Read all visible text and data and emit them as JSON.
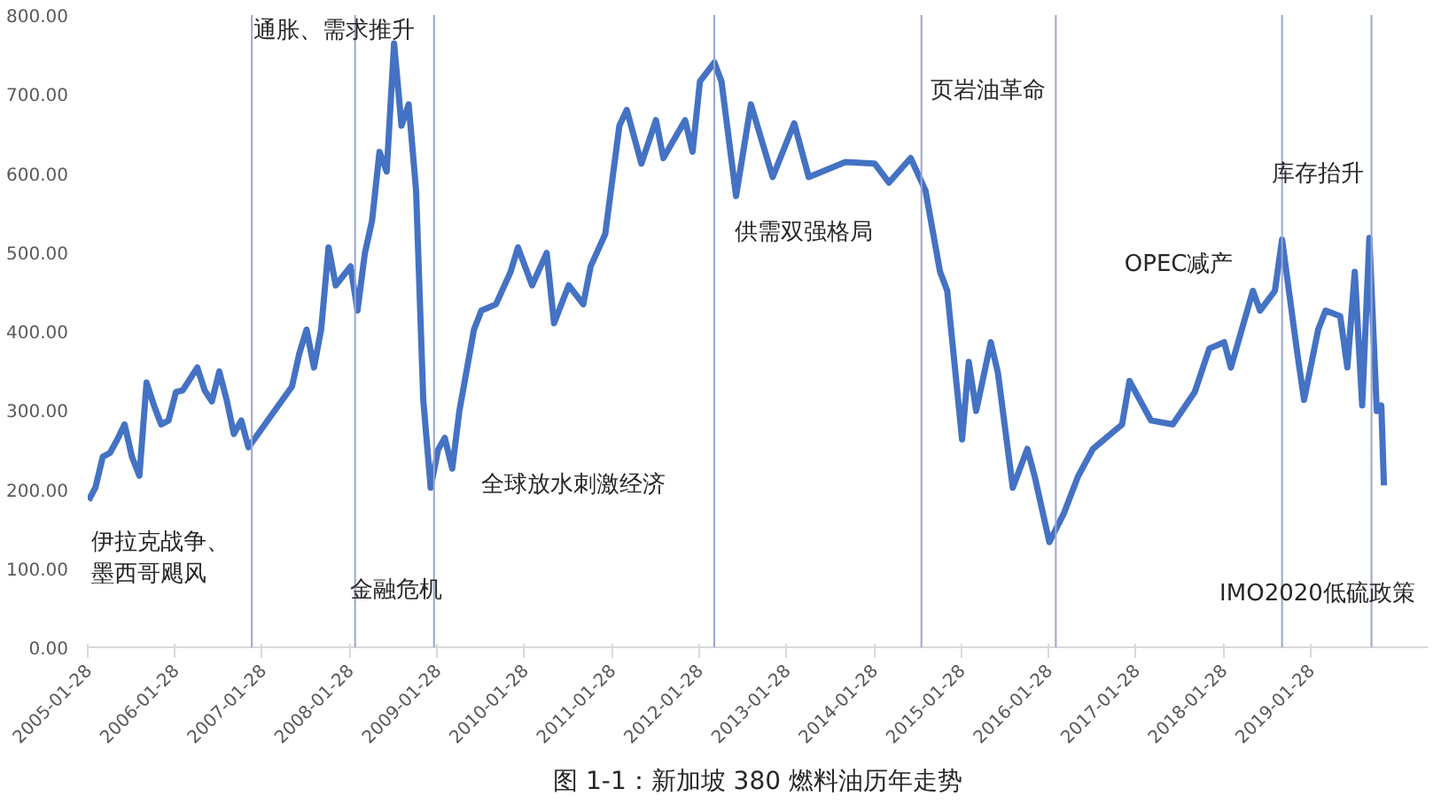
{
  "chart_data": {
    "type": "line",
    "title": "图 1-1：新加坡 380 燃料油历年走势",
    "x": [
      "2005-02",
      "2005-03",
      "2005-04",
      "2005-05",
      "2005-06",
      "2005-07",
      "2005-08",
      "2005-09",
      "2005-10",
      "2005-11",
      "2005-12",
      "2006-01",
      "2006-02",
      "2006-03",
      "2006-05",
      "2006-06",
      "2006-07",
      "2006-08",
      "2006-09",
      "2006-10",
      "2006-11",
      "2006-12",
      "2007-06",
      "2007-07",
      "2007-08",
      "2007-09",
      "2007-10",
      "2007-11",
      "2007-12",
      "2008-02",
      "2008-03",
      "2008-04",
      "2008-05",
      "2008-06",
      "2008-07",
      "2008-08",
      "2008-09",
      "2008-10",
      "2008-11",
      "2008-12",
      "2009-01",
      "2009-02",
      "2009-03",
      "2009-04",
      "2009-05",
      "2009-07",
      "2009-08",
      "2009-10",
      "2009-12",
      "2010-01",
      "2010-03",
      "2010-05",
      "2010-06",
      "2010-08",
      "2010-10",
      "2010-11",
      "2011-01",
      "2011-03",
      "2011-04",
      "2011-06",
      "2011-08",
      "2011-09",
      "2011-12",
      "2012-01",
      "2012-02",
      "2012-04",
      "2012-05",
      "2012-07",
      "2012-09",
      "2012-12",
      "2013-03",
      "2013-05",
      "2013-10",
      "2014-02",
      "2014-04",
      "2014-07",
      "2014-09",
      "2014-11",
      "2014-12",
      "2015-02",
      "2015-03",
      "2015-04",
      "2015-06",
      "2015-07",
      "2015-09",
      "2015-11",
      "2015-12",
      "2016-02",
      "2016-04",
      "2016-06",
      "2016-08",
      "2016-12",
      "2017-01",
      "2017-04",
      "2017-07",
      "2017-10",
      "2017-12",
      "2018-02",
      "2018-03",
      "2018-06",
      "2018-07",
      "2018-09",
      "2018-10",
      "2018-12",
      "2019-01",
      "2019-03",
      "2019-04",
      "2019-06",
      "2019-07",
      "2019-08",
      "2019-09",
      "2019-10",
      "2019-11",
      "2019-11-20",
      "2019-12"
    ],
    "series": [
      {
        "color": "#4472c4",
        "values": [
          186,
          202,
          241,
          246,
          263,
          282,
          241,
          217,
          335,
          306,
          282,
          287,
          323,
          325,
          354,
          325,
          311,
          349,
          313,
          270,
          287,
          253,
          330,
          371,
          402,
          354,
          402,
          506,
          458,
          482,
          426,
          499,
          540,
          627,
          602,
          764,
          660,
          687,
          578,
          313,
          202,
          250,
          265,
          226,
          299,
          402,
          426,
          434,
          475,
          506,
          458,
          499,
          410,
          458,
          434,
          482,
          523,
          660,
          680,
          612,
          667,
          619,
          667,
          627,
          716,
          740,
          716,
          571,
          687,
          595,
          663,
          595,
          614,
          612,
          588,
          619,
          578,
          475,
          451,
          263,
          361,
          299,
          386,
          347,
          202,
          251,
          217,
          133,
          169,
          217,
          251,
          282,
          337,
          287,
          282,
          323,
          378,
          386,
          354,
          451,
          426,
          451,
          516,
          378,
          313,
          402,
          426,
          419,
          354,
          475,
          306,
          518,
          299,
          306,
          205
        ]
      }
    ],
    "xlim": [
      "2005-01-28",
      "2020-06-01"
    ],
    "xticks": [
      {
        "value": "2005-01-28",
        "label": "2005-01-28"
      },
      {
        "value": "2006-01-28",
        "label": "2006-01-28"
      },
      {
        "value": "2007-01-28",
        "label": "2007-01-28"
      },
      {
        "value": "2008-01-28",
        "label": "2008-01-28"
      },
      {
        "value": "2009-01-28",
        "label": "2009-01-28"
      },
      {
        "value": "2010-01-28",
        "label": "2010-01-28"
      },
      {
        "value": "2011-01-28",
        "label": "2011-01-28"
      },
      {
        "value": "2012-01-28",
        "label": "2012-01-28"
      },
      {
        "value": "2013-01-28",
        "label": "2013-01-28"
      },
      {
        "value": "2014-01-28",
        "label": "2014-01-28"
      },
      {
        "value": "2015-01-28",
        "label": "2015-01-28"
      },
      {
        "value": "2016-01-28",
        "label": "2016-01-28"
      },
      {
        "value": "2017-01-28",
        "label": "2017-01-28"
      },
      {
        "value": "2018-01-28",
        "label": "2018-01-28"
      },
      {
        "value": "2019-01-28",
        "label": "2019-01-28"
      }
    ],
    "ylim": [
      0,
      800
    ],
    "yticks": [
      {
        "value": 0,
        "label": "0.00"
      },
      {
        "value": 100,
        "label": "100.00"
      },
      {
        "value": 200,
        "label": "200.00"
      },
      {
        "value": 300,
        "label": "300.00"
      },
      {
        "value": 400,
        "label": "400.00"
      },
      {
        "value": 500,
        "label": "500.00"
      },
      {
        "value": 600,
        "label": "600.00"
      },
      {
        "value": 700,
        "label": "700.00"
      },
      {
        "value": 800,
        "label": "800.00"
      }
    ],
    "ref_lines": [
      {
        "axis": "x",
        "value": "2006-12-15",
        "color": "#9aa6cf"
      },
      {
        "axis": "x",
        "value": "2008-02-20",
        "color": "#9aa6cf"
      },
      {
        "axis": "x",
        "value": "2009-01-15",
        "color": "#9aa6cf"
      },
      {
        "axis": "x",
        "value": "2012-04-01",
        "color": "#9aa6cf"
      },
      {
        "axis": "x",
        "value": "2014-08-15",
        "color": "#9aa6cf"
      },
      {
        "axis": "x",
        "value": "2016-02-28",
        "color": "#9aa6cf"
      },
      {
        "axis": "x",
        "value": "2018-10-01",
        "color": "#9aa6cf"
      },
      {
        "axis": "x",
        "value": "2019-10-10",
        "color": "#9aa6cf"
      }
    ],
    "annotations": [
      "伊拉克战争、",
      "墨西哥飓风",
      "通胀、需求推升",
      "金融危机",
      "全球放水刺激经济",
      "供需双强格局",
      "页岩油革命",
      "OPEC减产",
      "库存抬升",
      "IMO2020低硫政策"
    ],
    "grid": false,
    "marker": "none",
    "line_style": "solid"
  }
}
